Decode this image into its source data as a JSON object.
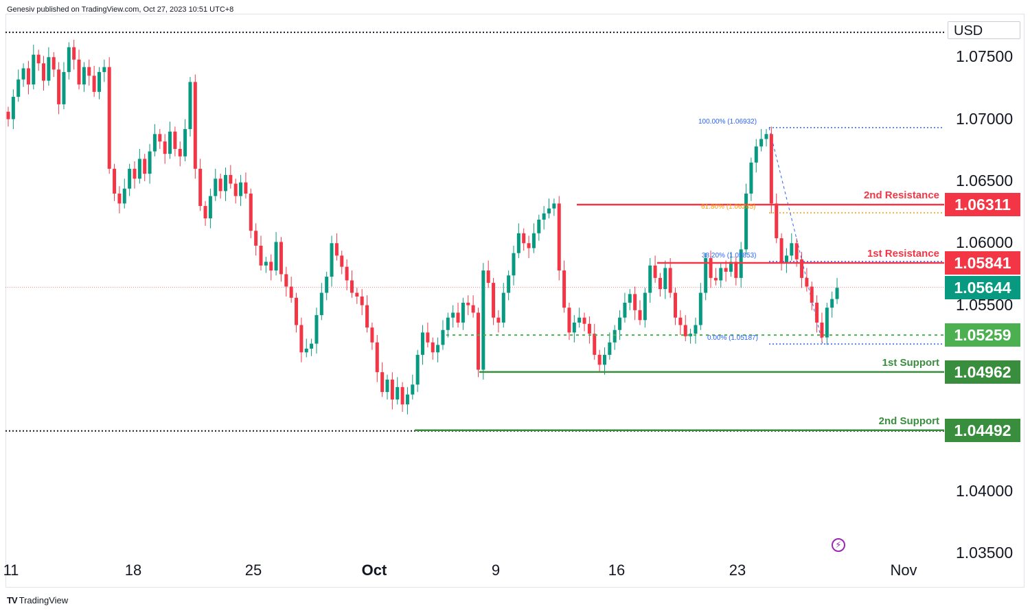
{
  "header": {
    "published": "Genesiv published on TradingView.com, Oct 27, 2023 10:51 UTC+8"
  },
  "currency": "USD",
  "footer": {
    "brand": "TradingView"
  },
  "colors": {
    "up": "#089981",
    "down": "#f23645",
    "resistance": "#f23645",
    "support": "#388e3c",
    "current": "#089981",
    "support_light": "#4caf50",
    "fib": "#2962ff"
  },
  "chart_data": {
    "type": "candlestick",
    "title": "",
    "xlabel": "",
    "ylabel": "",
    "ylim": [
      1.035,
      1.0785
    ],
    "y_ticks": [
      "1.07500",
      "1.07000",
      "1.06500",
      "1.06000",
      "1.05500",
      "1.04000",
      "1.03500"
    ],
    "x_ticks": [
      {
        "label": "11",
        "bold": false
      },
      {
        "label": "18",
        "bold": false
      },
      {
        "label": "25",
        "bold": false
      },
      {
        "label": "Oct",
        "bold": true
      },
      {
        "label": "9",
        "bold": false
      },
      {
        "label": "16",
        "bold": false
      },
      {
        "label": "23",
        "bold": false
      },
      {
        "label": "Nov",
        "bold": false
      }
    ],
    "levels": [
      {
        "name": "2nd Resistance",
        "price": "1.06311",
        "value": 1.06311,
        "kind": "resistance"
      },
      {
        "name": "1st Resistance",
        "price": "1.05841",
        "value": 1.05841,
        "kind": "resistance"
      },
      {
        "name": "",
        "price": "1.05644",
        "value": 1.05644,
        "kind": "current"
      },
      {
        "name": "",
        "price": "1.05259",
        "value": 1.05259,
        "kind": "pivot"
      },
      {
        "name": "1st Support",
        "price": "1.04962",
        "value": 1.04962,
        "kind": "support"
      },
      {
        "name": "2nd Support",
        "price": "1.04492",
        "value": 1.04492,
        "kind": "support"
      }
    ],
    "fibonacci": [
      {
        "label": "100.00% (1.06932)",
        "value": 1.06932
      },
      {
        "label": "61.80% (1.06245)",
        "value": 1.06245
      },
      {
        "label": "38.20% (1.05853)",
        "value": 1.05853
      },
      {
        "label": "0.00% (1.05187)",
        "value": 1.05187
      }
    ],
    "closes": [
      1.07,
      1.0718,
      1.0732,
      1.0741,
      1.0728,
      1.0752,
      1.0745,
      1.0731,
      1.075,
      1.074,
      1.0712,
      1.0738,
      1.0758,
      1.0748,
      1.0728,
      1.0742,
      1.0735,
      1.0722,
      1.0738,
      1.0742,
      1.066,
      1.064,
      1.0632,
      1.0644,
      1.066,
      1.0652,
      1.0668,
      1.0656,
      1.0674,
      1.0688,
      1.0682,
      1.0672,
      1.069,
      1.0676,
      1.067,
      1.0692,
      1.073,
      1.066,
      1.063,
      1.062,
      1.0638,
      1.0652,
      1.0642,
      1.0655,
      1.0648,
      1.0638,
      1.0649,
      1.064,
      1.061,
      1.0598,
      1.0582,
      1.0585,
      1.0578,
      1.0601,
      1.0575,
      1.0565,
      1.0556,
      1.0534,
      1.0512,
      1.0515,
      1.0519,
      1.0542,
      1.056,
      1.0573,
      1.06,
      1.059,
      1.0581,
      1.057,
      1.056,
      1.0557,
      1.055,
      1.0532,
      1.052,
      1.0496,
      1.048,
      1.049,
      1.0474,
      1.0484,
      1.047,
      1.0478,
      1.0486,
      1.051,
      1.0528,
      1.052,
      1.0512,
      1.0518,
      1.053,
      1.054,
      1.0544,
      1.0536,
      1.0552,
      1.055,
      1.0544,
      1.0498,
      1.0578,
      1.0568,
      1.054,
      1.0536,
      1.056,
      1.0574,
      1.0592,
      1.0608,
      1.06,
      1.0596,
      1.0608,
      1.0619,
      1.0624,
      1.0628,
      1.0632,
      1.0578,
      1.0548,
      1.0528,
      1.0536,
      1.054,
      1.0535,
      1.0527,
      1.051,
      1.0502,
      1.051,
      1.052,
      1.053,
      1.054,
      1.0552,
      1.0559,
      1.0546,
      1.0538,
      1.056,
      1.0582,
      1.0572,
      1.0563,
      1.058,
      1.056,
      1.054,
      1.0534,
      1.0525,
      1.0527,
      1.0534,
      1.056,
      1.0588,
      1.0572,
      1.057,
      1.058,
      1.0577,
      1.0585,
      1.0572,
      1.0595,
      1.064,
      1.0665,
      1.0678,
      1.0684,
      1.0688,
      1.0632,
      1.0604,
      1.0584,
      1.059,
      1.06,
      1.0587,
      1.0572,
      1.0565,
      1.0552,
      1.0536,
      1.0524,
      1.0548,
      1.0555,
      1.0564
    ]
  }
}
